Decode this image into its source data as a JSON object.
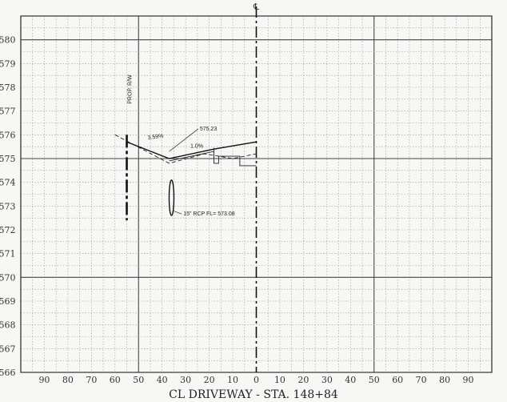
{
  "sheet": {
    "centerline_symbol": "℄",
    "title": "CL DRIVEWAY - STA. 148+84"
  },
  "axes": {
    "offset_ticks": [
      "90",
      "80",
      "70",
      "60",
      "50",
      "40",
      "30",
      "20",
      "10",
      "0",
      "10",
      "20",
      "30",
      "40",
      "50",
      "60",
      "70",
      "80",
      "90"
    ],
    "offset_values": [
      -90,
      -80,
      -70,
      -60,
      -50,
      -40,
      -30,
      -20,
      -10,
      0,
      10,
      20,
      30,
      40,
      50,
      60,
      70,
      80,
      90
    ],
    "elevation_ticks": [
      "580",
      "579",
      "578",
      "577",
      "576",
      "575",
      "574",
      "573",
      "572",
      "571",
      "570",
      "569",
      "568",
      "567",
      "566"
    ],
    "elevation_values": [
      580,
      579,
      578,
      577,
      576,
      575,
      574,
      573,
      572,
      571,
      570,
      569,
      568,
      567,
      566
    ],
    "x_range": [
      -100,
      100
    ],
    "y_range": [
      566,
      581
    ]
  },
  "annotations": {
    "row_label": "PROP. R/W",
    "elevation_label": "575.23",
    "slope_left": "3.59%",
    "slope_right": "1.0%",
    "pipe_label": "15\" RCP FL= 573.08"
  },
  "profile": {
    "row_offset": -55,
    "row_elev_top": 576.0,
    "row_elev_bottom": 572.4,
    "proposed_grade": [
      [
        -55,
        575.7
      ],
      [
        -37,
        575.0
      ],
      [
        -18,
        575.4
      ],
      [
        0,
        575.7
      ]
    ],
    "existing_ground": [
      [
        -60,
        576.0
      ],
      [
        -37,
        574.8
      ],
      [
        -22,
        575.2
      ],
      [
        -10,
        575.0
      ],
      [
        0,
        575.2
      ]
    ],
    "curb_line": [
      [
        -18,
        575.45
      ],
      [
        -18,
        574.8
      ],
      [
        -16,
        574.8
      ],
      [
        -16,
        575.1
      ],
      [
        -7,
        575.1
      ],
      [
        -7,
        574.7
      ],
      [
        0,
        574.7
      ]
    ],
    "pipe": {
      "offset": -36,
      "elev_top": 574.1,
      "elev_bottom": 572.6
    },
    "elevation_leader": {
      "offset": -24,
      "elev": 576.25
    }
  },
  "colors": {
    "ink": "#222222",
    "grid": "#9a9a9a",
    "background": "#f7f7f5"
  }
}
